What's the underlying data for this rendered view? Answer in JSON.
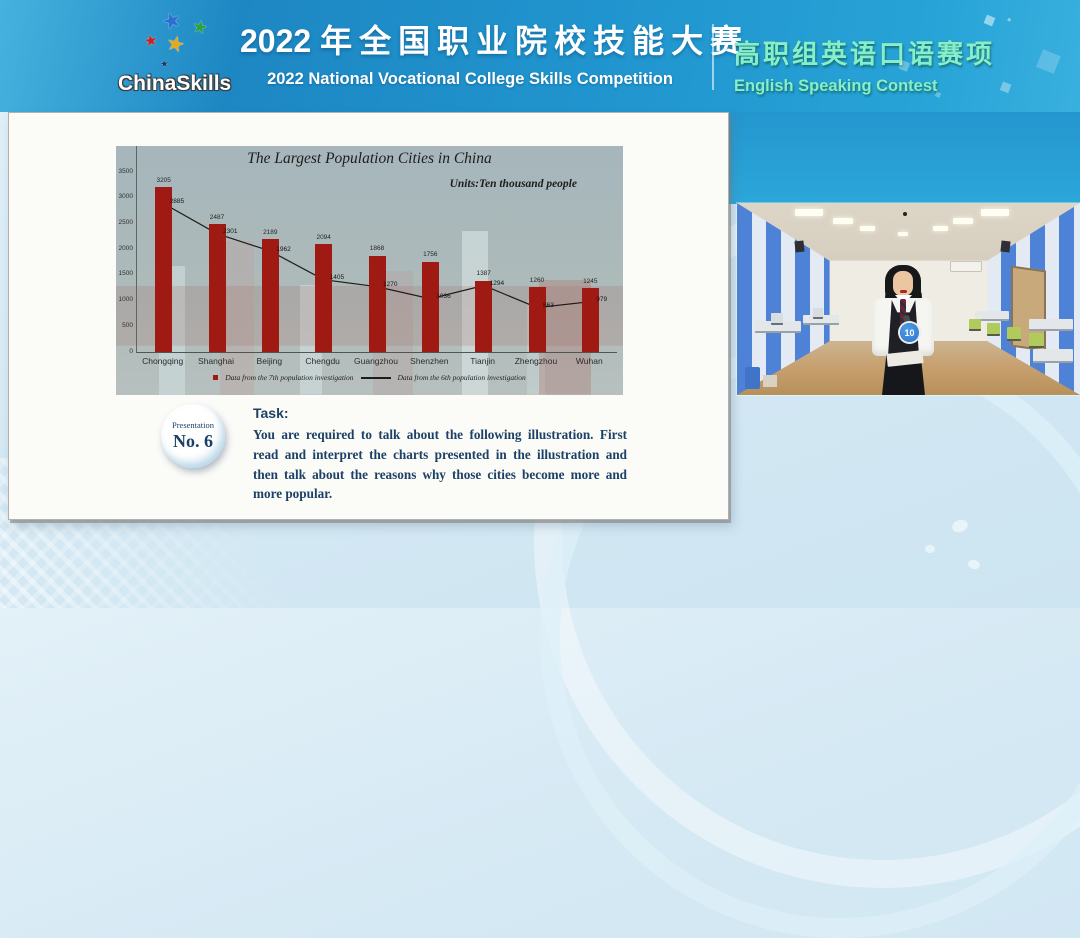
{
  "header": {
    "logo_china": "China",
    "logo_skills": "Skills",
    "title_cn_year": "2022",
    "title_cn_rest": "年全国职业院校技能大赛",
    "title_en": "2022 National Vocational College Skills Competition",
    "contest_cn": "高职组英语口语赛项",
    "contest_en": "English Speaking Contest"
  },
  "presentation": {
    "badge_line1": "Presentation",
    "badge_line2": "No. 6",
    "task_heading": "Task:",
    "task_body": "You are required to talk about the following illustration. First read and interpret the charts presented in the illustration and then talk about the reasons why those cities become more and more popular."
  },
  "chart_data": {
    "type": "bar",
    "title": "The Largest Population Cities in China",
    "units_label": "Units:Ten thousand people",
    "categories": [
      "Chongqing",
      "Shanghai",
      "Beijing",
      "Chengdu",
      "Guangzhou",
      "Shenzhen",
      "Tianjin",
      "Zhengzhou",
      "Wuhan"
    ],
    "series": [
      {
        "name": "Data from the 7th population investigation",
        "type": "bar",
        "color": "#a01a14",
        "values": [
          3205,
          2487,
          2189,
          2094,
          1868,
          1756,
          1387,
          1260,
          1245
        ]
      },
      {
        "name": "Data from the 6th population investigation",
        "type": "line",
        "color": "#1c1c1c",
        "values": [
          2885,
          2301,
          1962,
          1405,
          1270,
          1036,
          1294,
          863,
          979
        ]
      }
    ],
    "xlabel": "",
    "ylabel": "",
    "ylim": [
      0,
      3500
    ],
    "ytick_step": 500,
    "grid": false,
    "legend_position": "bottom"
  },
  "video": {
    "contestant_badge": "10"
  },
  "colors": {
    "header_blue": "#2094ce",
    "contest_green": "#87eecb",
    "bar_red": "#a01a14",
    "task_navy": "#1d4166"
  }
}
